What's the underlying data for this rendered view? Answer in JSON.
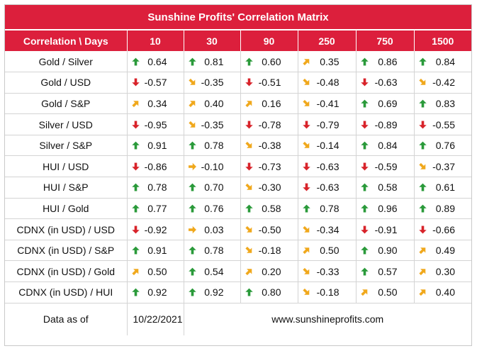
{
  "title": "Sunshine Profits' Correlation Matrix",
  "header": {
    "corner_label": "Correlation \\ Days",
    "days": [
      "10",
      "30",
      "90",
      "250",
      "750",
      "1500"
    ]
  },
  "icons": {
    "up-arrow": "#2a9a3a",
    "down-arrow": "#d8232a",
    "diag-up-arrow": "#f0a81c",
    "diag-down-arrow": "#f0a81c",
    "right-arrow": "#f0a81c"
  },
  "rows": [
    {
      "label": "Gold / Silver",
      "cells": [
        {
          "value": "0.64",
          "arrow": "up"
        },
        {
          "value": "0.81",
          "arrow": "up"
        },
        {
          "value": "0.60",
          "arrow": "up"
        },
        {
          "value": "0.35",
          "arrow": "diag-up"
        },
        {
          "value": "0.86",
          "arrow": "up"
        },
        {
          "value": "0.84",
          "arrow": "up"
        }
      ]
    },
    {
      "label": "Gold / USD",
      "cells": [
        {
          "value": "-0.57",
          "arrow": "down"
        },
        {
          "value": "-0.35",
          "arrow": "diag-down"
        },
        {
          "value": "-0.51",
          "arrow": "down"
        },
        {
          "value": "-0.48",
          "arrow": "diag-down"
        },
        {
          "value": "-0.63",
          "arrow": "down"
        },
        {
          "value": "-0.42",
          "arrow": "diag-down"
        }
      ]
    },
    {
      "label": "Gold / S&P",
      "cells": [
        {
          "value": "0.34",
          "arrow": "diag-up"
        },
        {
          "value": "0.40",
          "arrow": "diag-up"
        },
        {
          "value": "0.16",
          "arrow": "diag-up"
        },
        {
          "value": "-0.41",
          "arrow": "diag-down"
        },
        {
          "value": "0.69",
          "arrow": "up"
        },
        {
          "value": "0.83",
          "arrow": "up"
        }
      ]
    },
    {
      "label": "Silver / USD",
      "cells": [
        {
          "value": "-0.95",
          "arrow": "down"
        },
        {
          "value": "-0.35",
          "arrow": "diag-down"
        },
        {
          "value": "-0.78",
          "arrow": "down"
        },
        {
          "value": "-0.79",
          "arrow": "down"
        },
        {
          "value": "-0.89",
          "arrow": "down"
        },
        {
          "value": "-0.55",
          "arrow": "down"
        }
      ]
    },
    {
      "label": "Silver / S&P",
      "cells": [
        {
          "value": "0.91",
          "arrow": "up"
        },
        {
          "value": "0.78",
          "arrow": "up"
        },
        {
          "value": "-0.38",
          "arrow": "diag-down"
        },
        {
          "value": "-0.14",
          "arrow": "diag-down"
        },
        {
          "value": "0.84",
          "arrow": "up"
        },
        {
          "value": "0.76",
          "arrow": "up"
        }
      ]
    },
    {
      "label": "HUI / USD",
      "cells": [
        {
          "value": "-0.86",
          "arrow": "down"
        },
        {
          "value": "-0.10",
          "arrow": "right"
        },
        {
          "value": "-0.73",
          "arrow": "down"
        },
        {
          "value": "-0.63",
          "arrow": "down"
        },
        {
          "value": "-0.59",
          "arrow": "down"
        },
        {
          "value": "-0.37",
          "arrow": "diag-down"
        }
      ]
    },
    {
      "label": "HUI / S&P",
      "cells": [
        {
          "value": "0.78",
          "arrow": "up"
        },
        {
          "value": "0.70",
          "arrow": "up"
        },
        {
          "value": "-0.30",
          "arrow": "diag-down"
        },
        {
          "value": "-0.63",
          "arrow": "down"
        },
        {
          "value": "0.58",
          "arrow": "up"
        },
        {
          "value": "0.61",
          "arrow": "up"
        }
      ]
    },
    {
      "label": "HUI / Gold",
      "cells": [
        {
          "value": "0.77",
          "arrow": "up"
        },
        {
          "value": "0.76",
          "arrow": "up"
        },
        {
          "value": "0.58",
          "arrow": "up"
        },
        {
          "value": "0.78",
          "arrow": "up"
        },
        {
          "value": "0.96",
          "arrow": "up"
        },
        {
          "value": "0.89",
          "arrow": "up"
        }
      ]
    },
    {
      "label": "CDNX (in USD) / USD",
      "cells": [
        {
          "value": "-0.92",
          "arrow": "down"
        },
        {
          "value": "0.03",
          "arrow": "right"
        },
        {
          "value": "-0.50",
          "arrow": "diag-down"
        },
        {
          "value": "-0.34",
          "arrow": "diag-down"
        },
        {
          "value": "-0.91",
          "arrow": "down"
        },
        {
          "value": "-0.66",
          "arrow": "down"
        }
      ]
    },
    {
      "label": "CDNX (in USD) / S&P",
      "cells": [
        {
          "value": "0.91",
          "arrow": "up"
        },
        {
          "value": "0.78",
          "arrow": "up"
        },
        {
          "value": "-0.18",
          "arrow": "diag-down"
        },
        {
          "value": "0.50",
          "arrow": "diag-up"
        },
        {
          "value": "0.90",
          "arrow": "up"
        },
        {
          "value": "0.49",
          "arrow": "diag-up"
        }
      ]
    },
    {
      "label": "CDNX (in USD) / Gold",
      "cells": [
        {
          "value": "0.50",
          "arrow": "diag-up"
        },
        {
          "value": "0.54",
          "arrow": "up"
        },
        {
          "value": "0.20",
          "arrow": "diag-up"
        },
        {
          "value": "-0.33",
          "arrow": "diag-down"
        },
        {
          "value": "0.57",
          "arrow": "up"
        },
        {
          "value": "0.30",
          "arrow": "diag-up"
        }
      ]
    },
    {
      "label": "CDNX (in USD) / HUI",
      "cells": [
        {
          "value": "0.92",
          "arrow": "up"
        },
        {
          "value": "0.92",
          "arrow": "up"
        },
        {
          "value": "0.80",
          "arrow": "up"
        },
        {
          "value": "-0.18",
          "arrow": "diag-down"
        },
        {
          "value": "0.50",
          "arrow": "diag-up"
        },
        {
          "value": "0.40",
          "arrow": "diag-up"
        }
      ]
    }
  ],
  "footer": {
    "data_as_of_label": "Data as of",
    "date": "10/22/2021",
    "website": "www.sunshineprofits.com"
  }
}
